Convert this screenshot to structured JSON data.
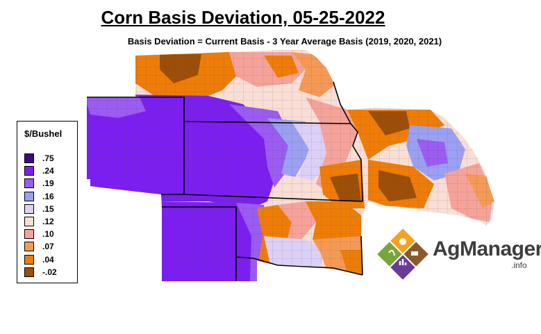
{
  "title": "Corn Basis Deviation, 05-25-2022",
  "subtitle": "Basis Deviation = Current Basis - 3 Year Average Basis (2019, 2020, 2021)",
  "legend": {
    "title": "$/Bushel",
    "items": [
      {
        "label": ".75",
        "color": "#3b0a8c"
      },
      {
        "label": ".24",
        "color": "#7b1ff0"
      },
      {
        "label": ".19",
        "color": "#9a5cf2"
      },
      {
        "label": ".16",
        "color": "#9aa0f2"
      },
      {
        "label": ".15",
        "color": "#ddd0f6"
      },
      {
        "label": ".12",
        "color": "#f9ded6"
      },
      {
        "label": ".10",
        "color": "#f5a39a"
      },
      {
        "label": ".07",
        "color": "#f59a56"
      },
      {
        "label": ".04",
        "color": "#ee7d08"
      },
      {
        "label": "-.02",
        "color": "#9c4f08"
      }
    ]
  },
  "logo": {
    "name": "AgManager",
    "suffix": ".info",
    "colors": [
      "#f2a31f",
      "#6a3c98",
      "#7aa53a",
      "#8b5a2b"
    ]
  }
}
